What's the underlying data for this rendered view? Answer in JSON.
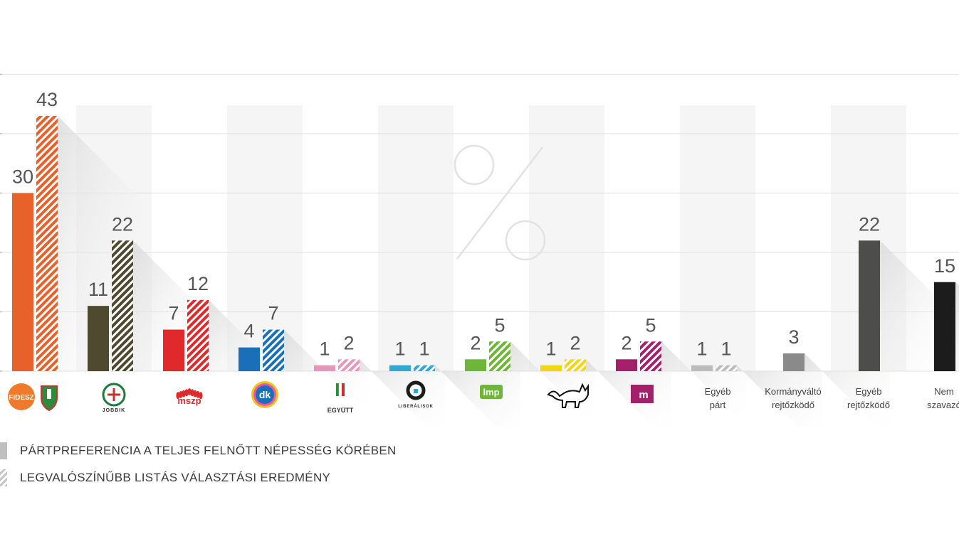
{
  "chart_data": {
    "type": "bar",
    "categories": [
      "Fidesz-KDNP",
      "Jobbik",
      "MSZP",
      "DK",
      "Együtt",
      "Liberálisok",
      "LMP",
      "Kutyapárt",
      "Momentum",
      "Egyéb párt",
      "Kormányváltó rejtőzködő",
      "Egyéb rejtőzködő",
      "Nem szavazó"
    ],
    "category_labels": [
      "FIDESZ",
      "JOBBIK",
      "mszp",
      "dk",
      "EGYÜTT",
      "LIBERÁLISOK",
      "lmp",
      "",
      "m",
      "Egyéb párt",
      "Kormányváltó rejtőzködő",
      "Egyéb rejtőzködő",
      "Nem szavazó"
    ],
    "icons": [
      "fidesz-logo-icon",
      "jobbik-logo-icon",
      "mszp-logo-icon",
      "dk-logo-icon",
      "egyutt-logo-icon",
      "liberalisok-logo-icon",
      "lmp-logo-icon",
      "kutyapart-cat-icon",
      "momentum-logo-icon",
      "",
      "",
      "",
      ""
    ],
    "series": [
      {
        "name": "PÁRTPREFERENCIA A TELJES FELNŐTT NÉPESSÉG KÖRÉBEN",
        "pattern": "solid",
        "values": [
          30,
          11,
          7,
          4,
          1,
          1,
          2,
          1,
          2,
          1,
          3,
          22,
          15
        ]
      },
      {
        "name": "LEGVALÓSZÍNŰBB LISTÁS VÁLASZTÁSI EREDMÉNY",
        "pattern": "hatched",
        "values": [
          43,
          22,
          12,
          7,
          2,
          1,
          5,
          2,
          5,
          1,
          null,
          null,
          null
        ]
      }
    ],
    "colors": [
      "#e8612b",
      "#4f4a2f",
      "#e0292a",
      "#1a6fb9",
      "#e896bb",
      "#2da9d6",
      "#6db637",
      "#f2d60f",
      "#a4206b",
      "#bcbcbc",
      "#8a8a8a",
      "#4d4d4b",
      "#1c1c1c"
    ],
    "ylim": [
      0,
      50
    ],
    "grid": true,
    "background_symbol": "%",
    "legend_position": "bottom-left"
  },
  "legend": {
    "solid_label": "PÁRTPREFERENCIA A TELJES FELNŐTT NÉPESSÉG KÖRÉBEN",
    "hatch_label": "LEGVALÓSZÍNŰBB LISTÁS VÁLASZTÁSI EREDMÉNY"
  }
}
